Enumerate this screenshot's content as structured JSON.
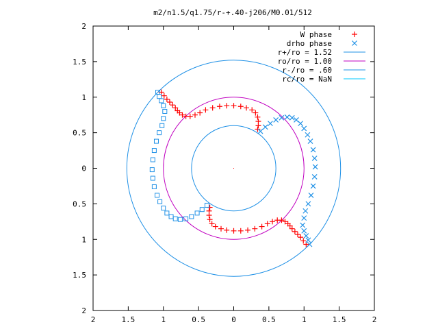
{
  "chart_data": {
    "type": "scatter",
    "title": "m2/n1.5/q1.75/r-+.40-j206/M0.01/512",
    "xlabel": "",
    "ylabel": "",
    "xlim": [
      -2,
      2
    ],
    "ylim": [
      -2,
      2
    ],
    "x_ticks": [
      -2,
      -1.5,
      -1,
      -0.5,
      0,
      0.5,
      1,
      1.5,
      2
    ],
    "y_ticks": [
      -2,
      -1.5,
      -1,
      -0.5,
      0,
      0.5,
      1,
      1.5,
      2
    ],
    "x_tick_labels": [
      "2",
      "1.5",
      "1",
      "0.5",
      "0",
      "0.5",
      "1",
      "1.5",
      "2"
    ],
    "y_tick_labels": [
      "2",
      "1.5",
      "1",
      "0.5",
      "0",
      "0.5",
      "1",
      "1.5",
      "2"
    ],
    "grid": false,
    "legend_position": "top-right",
    "colors": {
      "red": "#ff0000",
      "blue": "#1e90e6",
      "magenta": "#c000c0",
      "cyan": "#00c8ff"
    },
    "circles": [
      {
        "label": "r+/ro = 1.52",
        "radius": 1.52,
        "color": "#1e90e6"
      },
      {
        "label": "ro/ro = 1.00",
        "radius": 1.0,
        "color": "#c000c0"
      },
      {
        "label": "r-/ro = .60",
        "radius": 0.6,
        "color": "#1e90e6"
      },
      {
        "label": "rc/ro = NaN",
        "radius": null,
        "color": "#00c8ff"
      }
    ],
    "series": [
      {
        "name": "W phase",
        "marker": "plus",
        "color": "#ff0000",
        "points": [
          [
            -1.03,
            1.07
          ],
          [
            -0.99,
            1.02
          ],
          [
            -0.95,
            0.97
          ],
          [
            -0.91,
            0.93
          ],
          [
            -0.87,
            0.89
          ],
          [
            -0.83,
            0.85
          ],
          [
            -0.8,
            0.81
          ],
          [
            -0.77,
            0.78
          ],
          [
            -0.73,
            0.75
          ],
          [
            -0.68,
            0.73
          ],
          [
            -0.62,
            0.73
          ],
          [
            -0.55,
            0.75
          ],
          [
            -0.48,
            0.78
          ],
          [
            -0.4,
            0.82
          ],
          [
            -0.3,
            0.85
          ],
          [
            -0.2,
            0.87
          ],
          [
            -0.1,
            0.88
          ],
          [
            0.0,
            0.88
          ],
          [
            0.1,
            0.87
          ],
          [
            0.18,
            0.85
          ],
          [
            0.26,
            0.82
          ],
          [
            0.31,
            0.78
          ],
          [
            0.34,
            0.72
          ],
          [
            0.35,
            0.66
          ],
          [
            0.35,
            0.6
          ],
          [
            0.34,
            0.55
          ],
          [
            1.03,
            -1.07
          ],
          [
            0.99,
            -1.02
          ],
          [
            0.95,
            -0.97
          ],
          [
            0.91,
            -0.93
          ],
          [
            0.87,
            -0.89
          ],
          [
            0.83,
            -0.85
          ],
          [
            0.8,
            -0.81
          ],
          [
            0.77,
            -0.78
          ],
          [
            0.73,
            -0.75
          ],
          [
            0.68,
            -0.73
          ],
          [
            0.62,
            -0.73
          ],
          [
            0.55,
            -0.75
          ],
          [
            0.48,
            -0.78
          ],
          [
            0.4,
            -0.82
          ],
          [
            0.3,
            -0.85
          ],
          [
            0.2,
            -0.87
          ],
          [
            0.1,
            -0.88
          ],
          [
            0.0,
            -0.88
          ],
          [
            -0.1,
            -0.87
          ],
          [
            -0.18,
            -0.85
          ],
          [
            -0.26,
            -0.82
          ],
          [
            -0.31,
            -0.78
          ],
          [
            -0.34,
            -0.72
          ],
          [
            -0.35,
            -0.66
          ],
          [
            -0.35,
            -0.6
          ],
          [
            -0.34,
            -0.55
          ]
        ]
      },
      {
        "name": "drho phase",
        "marker": "cross",
        "color": "#1e90e6",
        "points": [
          [
            0.38,
            0.52
          ],
          [
            0.45,
            0.58
          ],
          [
            0.52,
            0.63
          ],
          [
            0.6,
            0.68
          ],
          [
            0.68,
            0.71
          ],
          [
            0.76,
            0.72
          ],
          [
            0.83,
            0.71
          ],
          [
            0.89,
            0.68
          ],
          [
            0.95,
            0.63
          ],
          [
            1.0,
            0.56
          ],
          [
            1.05,
            0.47
          ],
          [
            1.09,
            0.38
          ],
          [
            1.13,
            0.26
          ],
          [
            1.15,
            0.14
          ],
          [
            1.16,
            0.02
          ],
          [
            1.15,
            -0.12
          ],
          [
            1.13,
            -0.25
          ],
          [
            1.1,
            -0.38
          ],
          [
            1.06,
            -0.5
          ],
          [
            1.02,
            -0.6
          ],
          [
            1.0,
            -0.7
          ],
          [
            0.98,
            -0.8
          ],
          [
            1.0,
            -0.88
          ],
          [
            1.03,
            -0.95
          ],
          [
            1.06,
            -1.01
          ],
          [
            1.08,
            -1.07
          ]
        ]
      },
      {
        "name": "",
        "marker": "square",
        "color": "#1e90e6",
        "points": [
          [
            -0.38,
            -0.52
          ],
          [
            -0.45,
            -0.58
          ],
          [
            -0.52,
            -0.63
          ],
          [
            -0.6,
            -0.68
          ],
          [
            -0.68,
            -0.71
          ],
          [
            -0.76,
            -0.72
          ],
          [
            -0.83,
            -0.71
          ],
          [
            -0.89,
            -0.68
          ],
          [
            -0.95,
            -0.63
          ],
          [
            -1.0,
            -0.56
          ],
          [
            -1.05,
            -0.47
          ],
          [
            -1.09,
            -0.38
          ],
          [
            -1.13,
            -0.26
          ],
          [
            -1.15,
            -0.14
          ],
          [
            -1.16,
            -0.02
          ],
          [
            -1.15,
            0.12
          ],
          [
            -1.13,
            0.25
          ],
          [
            -1.1,
            0.38
          ],
          [
            -1.06,
            0.5
          ],
          [
            -1.02,
            0.6
          ],
          [
            -1.0,
            0.7
          ],
          [
            -0.98,
            0.8
          ],
          [
            -1.0,
            0.88
          ],
          [
            -1.03,
            0.95
          ],
          [
            -1.06,
            1.01
          ],
          [
            -1.08,
            1.07
          ]
        ]
      }
    ]
  }
}
